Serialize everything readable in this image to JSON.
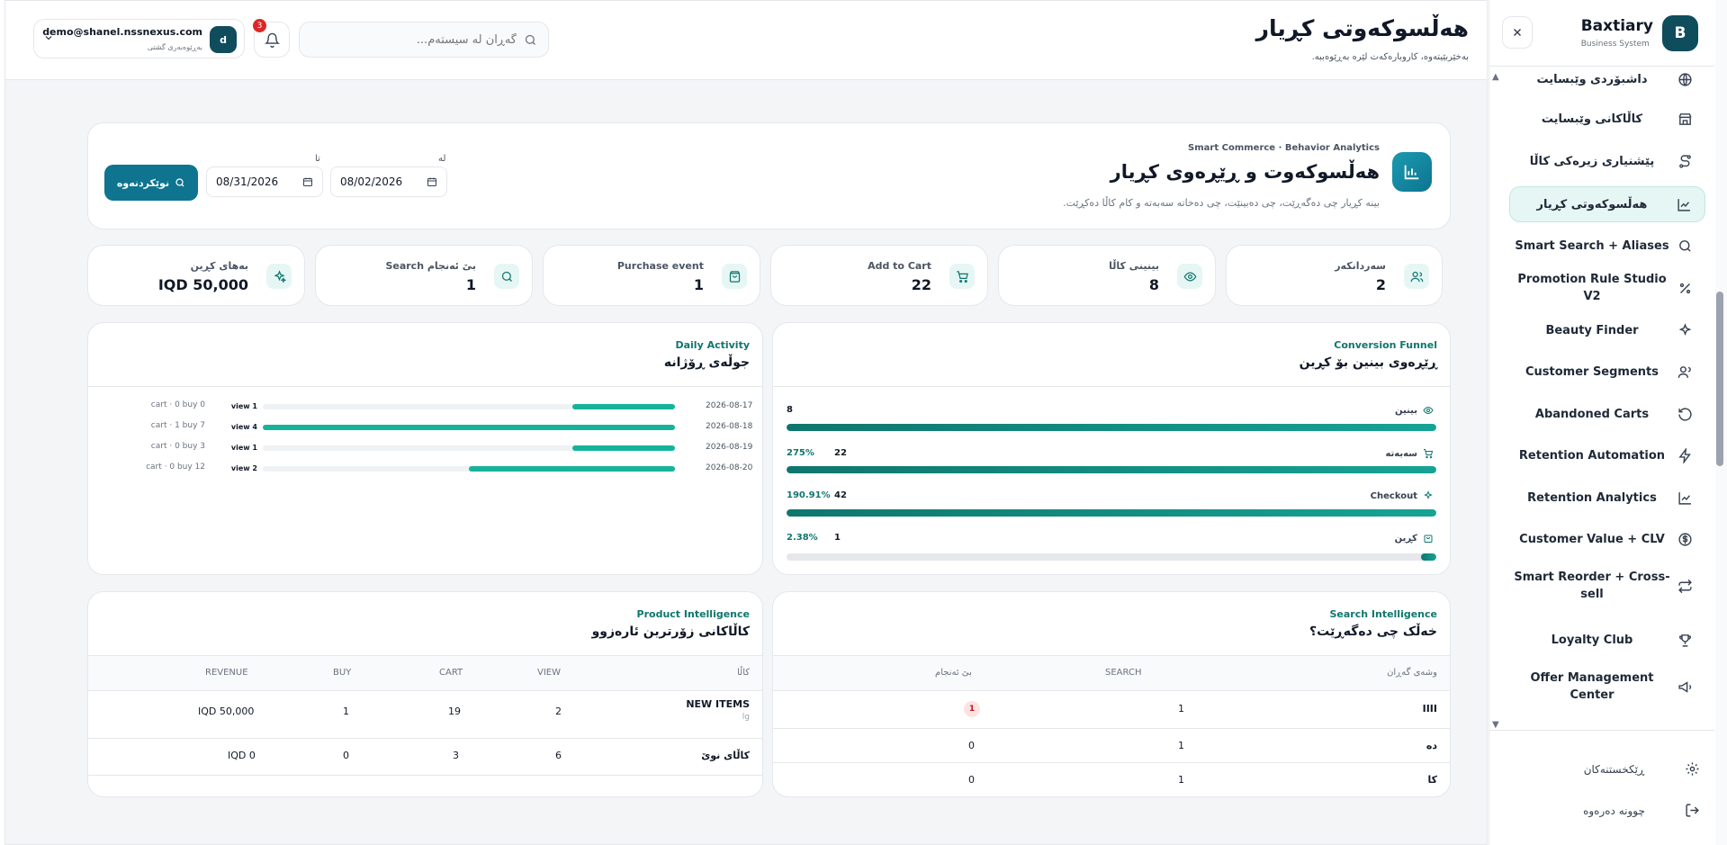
{
  "sidebar": {
    "logo_letter": "B",
    "brand_name": "Baxtiary",
    "brand_sub": "Business System",
    "items": [
      {
        "label": "داشبۆردی وێبسایت",
        "icon": "globe-icon"
      },
      {
        "label": "کاڵاکانی وێبسایت",
        "icon": "store-icon"
      },
      {
        "label": "پێشنیاری زیرەکی کاڵا",
        "icon": "route-icon"
      },
      {
        "label": "هەڵسوکەوتی کڕیار",
        "icon": "chart-line-icon"
      },
      {
        "label": "Smart Search + Aliases",
        "icon": "search-icon"
      },
      {
        "label": "Promotion Rule Studio V2",
        "icon": "percent-icon"
      },
      {
        "label": "Beauty Finder",
        "icon": "sparkles-icon"
      },
      {
        "label": "Customer Segments",
        "icon": "users-icon"
      },
      {
        "label": "Abandoned Carts",
        "icon": "rotate-icon"
      },
      {
        "label": "Retention Automation",
        "icon": "bolt-icon"
      },
      {
        "label": "Retention Analytics",
        "icon": "chart-line-icon"
      },
      {
        "label": "Customer Value + CLV",
        "icon": "dollar-icon"
      },
      {
        "label": "Smart Reorder + Cross-sell",
        "icon": "repeat-icon"
      },
      {
        "label": "Loyalty Club",
        "icon": "trophy-icon"
      },
      {
        "label": "Offer Management Center",
        "icon": "megaphone-icon"
      }
    ],
    "footer": {
      "settings": "ڕێکخستنەکان",
      "logout": "چوونە دەرەوە"
    }
  },
  "topbar": {
    "title": "هەڵسوکەوتی کڕیار",
    "subtitle": "بەخێربێیتەوە، کاروبارەکەت لێرە بەڕێوەببە.",
    "search_placeholder": "گەڕان لە سیستەم...",
    "notif_count": "3",
    "user_initial": "d",
    "user_email": "demo@shanel.nssnexus.com",
    "user_role": "بەڕێوەبەری گشتی"
  },
  "hero": {
    "eyebrow": "Smart Commerce · Behavior Analytics",
    "title": "هەڵسوکەوت و ڕێڕەوی کڕیار",
    "desc": "بینە کڕیار چی دەگەڕێت، چی دەبینێت، چی دەخاتە سەبەتە و کام کاڵا دەکڕێت.",
    "from_label": "لە",
    "from_value": "08/02/2026",
    "to_label": "تا",
    "to_value": "08/31/2026",
    "refresh_label": "نوێکردنەوە"
  },
  "kpis": [
    {
      "label": "سەردانکەر",
      "value": "2",
      "icon": "users-icon"
    },
    {
      "label": "بینینی کاڵا",
      "value": "8",
      "icon": "eye-icon"
    },
    {
      "label": "Add to Cart",
      "value": "22",
      "icon": "cart-icon"
    },
    {
      "label": "Purchase event",
      "value": "1",
      "icon": "bag-icon"
    },
    {
      "label": "Search بێ ئەنجام",
      "value": "1",
      "icon": "search-icon"
    },
    {
      "label": "بەهای کڕین",
      "value": "IQD 50,000",
      "icon": "sparkles-icon"
    }
  ],
  "funnel": {
    "eyebrow": "Conversion Funnel",
    "title": "ڕێڕەوی بینین بۆ کڕین",
    "rows": [
      {
        "label": "بینین",
        "value": "8",
        "pct": "",
        "fill": 1.0,
        "icon": "eye-icon"
      },
      {
        "label": "سەبەتە",
        "value": "22",
        "pct": "275%",
        "fill": 1.0,
        "icon": "cart-icon"
      },
      {
        "label": "Checkout",
        "value": "42",
        "pct": "190.91%",
        "fill": 1.0,
        "icon": "sparkles-icon"
      },
      {
        "label": "کڕین",
        "value": "1",
        "pct": "2.38%",
        "fill": 0.024,
        "icon": "bag-icon"
      }
    ]
  },
  "daily": {
    "eyebrow": "Daily Activity",
    "title": "جوڵەی ڕۆژانە",
    "rows": [
      {
        "date": "2026-08-17",
        "view": "view 1",
        "cart": "cart · 0 buy 0",
        "fill": 0.25
      },
      {
        "date": "2026-08-18",
        "view": "view 4",
        "cart": "cart · 1 buy 7",
        "fill": 1.0
      },
      {
        "date": "2026-08-19",
        "view": "view 1",
        "cart": "cart · 0 buy 3",
        "fill": 0.25
      },
      {
        "date": "2026-08-20",
        "view": "view 2",
        "cart": "cart · 0 buy 12",
        "fill": 0.5
      }
    ]
  },
  "search_intel": {
    "eyebrow": "Search Intelligence",
    "title": "خەڵک چی دەگەڕێت؟",
    "headers": [
      "وشەی گەڕان",
      "SEARCH",
      "بێ ئەنجام"
    ],
    "rows": [
      {
        "term": "IIII",
        "search": "1",
        "noresult": "1",
        "highlight": true
      },
      {
        "term": "دە",
        "search": "1",
        "noresult": "0",
        "highlight": false
      },
      {
        "term": "کا",
        "search": "1",
        "noresult": "0",
        "highlight": false
      }
    ]
  },
  "product_intel": {
    "eyebrow": "Product Intelligence",
    "title": "کاڵاکانی زۆرترین ئارەزوو",
    "headers": [
      "کاڵا",
      "VIEW",
      "CART",
      "BUY",
      "REVENUE"
    ],
    "rows": [
      {
        "name": "NEW ITEMS",
        "sub": "lg",
        "view": "2",
        "cart": "19",
        "buy": "1",
        "revenue": "IQD 50,000"
      },
      {
        "name": "کاڵای نوێ",
        "sub": "",
        "view": "6",
        "cart": "3",
        "buy": "0",
        "revenue": "IQD 0"
      }
    ]
  },
  "colors": {
    "accent": "#0e7490",
    "teal": "#16b39a",
    "brand": "#0f4c5c",
    "danger": "#dc2626"
  }
}
